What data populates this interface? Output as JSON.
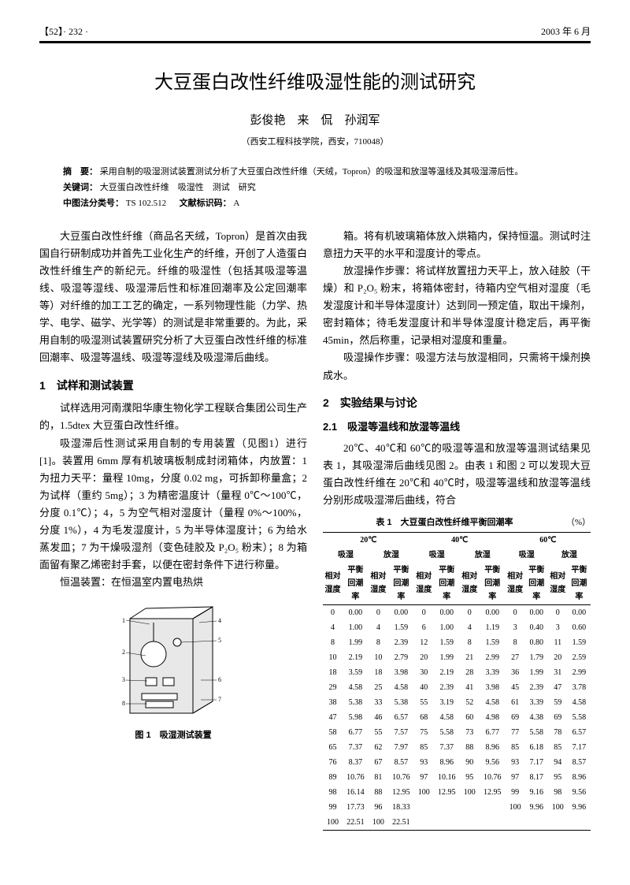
{
  "header": {
    "left": "【52】· 232 ·",
    "right": "2003 年 6 月"
  },
  "title": "大豆蛋白改性纤维吸湿性能的测试研究",
  "authors": "彭俊艳　来　侃　孙润军",
  "affiliation": "（西安工程科技学院，西安，710048）",
  "abstract": {
    "label": "摘　要：",
    "text": "采用自制的吸湿测试装置测试分析了大豆蛋白改性纤维（天绒，Topron）的吸湿和放湿等温线及其吸湿滞后性。",
    "kw_label": "关键词：",
    "kw": "大豆蛋白改性纤维　吸湿性　测试　研究",
    "clc_label": "中图法分类号：",
    "clc": "TS 102.512",
    "doc_label": "文献标识码：",
    "doc": "A"
  },
  "intro_p1": "大豆蛋白改性纤维（商品名天绒，Topron）是首次由我国自行研制成功并首先工业化生产的纤维，开创了人造蛋白改性纤维生产的新纪元。纤维的吸湿性（包括其吸湿等温线、吸湿等湿线、吸湿滞后性和标准回潮率及公定回潮率等）对纤维的加工工艺的确定，一系列物理性能（力学、热学、电学、磁学、光学等）的测试是非常重要的。为此，采用自制的吸湿测试装置研究分析了大豆蛋白改性纤维的标准回潮率、吸湿等温线、吸湿等湿线及吸湿滞后曲线。",
  "s1_h": "1　试样和测试装置",
  "s1_p1": "试样选用河南濮阳华康生物化学工程联合集团公司生产的，1.5dtex 大豆蛋白改性纤维。",
  "s1_p2": "吸湿滞后性测试采用自制的专用装置（见图1）进行[1]。装置用 6mm 厚有机玻璃板制成封闭箱体，内放置：1 为扭力天平：量程 10mg，分度 0.02 mg，可拆卸称量盒；2 为试样（重约 5mg）；3 为精密温度计（量程 0℃～100℃，分度 0.1℃）；4，5 为空气相对湿度计（量程 0%～100%，分度 1%），4 为毛发湿度计，5 为半导体湿度计；6 为给水蒸发皿；7 为干燥吸湿剂（变色硅胶及 P₂O₅ 粉末）；8 为箱面留有聚乙烯密封手套，以便在密封条件下进行称量。",
  "s1_p3": "恒温装置：在恒温室内置电热烘",
  "fig1_caption": "图 1　吸湿测试装置",
  "s1_p4": "箱。将有机玻璃箱体放入烘箱内，保持恒温。测试时注意扭力天平的水平和湿度计的零点。",
  "s1_p5": "放湿操作步骤：将试样放置扭力天平上，放入硅胶（干燥）和 P₂O₅ 粉末，将箱体密封，待箱内空气相对湿度（毛发湿度计和半导体湿度计）达到同一预定值，取出干燥剂，密封箱体；待毛发湿度计和半导体湿度计稳定后，再平衡 45min，然后称重，记录相对湿度和重量。",
  "s1_p6": "吸湿操作步骤：吸湿方法与放湿相同，只需将干燥剂换成水。",
  "s2_h": "2　实验结果与讨论",
  "s21_h": "2.1　吸湿等温线和放湿等温线",
  "s21_p1": "20℃、40℃和 60℃的吸湿等温和放湿等温测试结果见表 1，其吸湿滞后曲线见图 2。由表 1 和图 2 可以发现大豆蛋白改性纤维在 20℃和 40℃时，吸湿等温线和放湿等温线分别形成吸湿滞后曲线，符合",
  "table1": {
    "caption": "表 1　大豆蛋白改性纤维平衡回潮率",
    "unit": "（%）",
    "temps": [
      "20℃",
      "40℃",
      "60℃"
    ],
    "subhead": [
      "吸湿",
      "放湿"
    ],
    "col_pair": [
      "相对湿度",
      "平衡回潮率"
    ],
    "rows": [
      [
        "0",
        "0.00",
        "0",
        "0.00",
        "0",
        "0.00",
        "0",
        "0.00",
        "0",
        "0.00",
        "0",
        "0.00"
      ],
      [
        "4",
        "1.00",
        "4",
        "1.59",
        "6",
        "1.00",
        "4",
        "1.19",
        "3",
        "0.40",
        "3",
        "0.60"
      ],
      [
        "8",
        "1.99",
        "8",
        "2.39",
        "12",
        "1.59",
        "8",
        "1.59",
        "8",
        "0.80",
        "11",
        "1.59"
      ],
      [
        "10",
        "2.19",
        "10",
        "2.79",
        "20",
        "1.99",
        "21",
        "2.99",
        "27",
        "1.79",
        "20",
        "2.59"
      ],
      [
        "18",
        "3.59",
        "18",
        "3.98",
        "30",
        "2.19",
        "28",
        "3.39",
        "36",
        "1.99",
        "31",
        "2.99"
      ],
      [
        "29",
        "4.58",
        "25",
        "4.58",
        "40",
        "2.39",
        "41",
        "3.98",
        "45",
        "2.39",
        "47",
        "3.78"
      ],
      [
        "38",
        "5.38",
        "33",
        "5.38",
        "55",
        "3.19",
        "52",
        "4.58",
        "61",
        "3.39",
        "59",
        "4.58"
      ],
      [
        "47",
        "5.98",
        "46",
        "6.57",
        "68",
        "4.58",
        "60",
        "4.98",
        "69",
        "4.38",
        "69",
        "5.58"
      ],
      [
        "58",
        "6.77",
        "55",
        "7.57",
        "75",
        "5.58",
        "73",
        "6.77",
        "77",
        "5.58",
        "78",
        "6.57"
      ],
      [
        "65",
        "7.37",
        "62",
        "7.97",
        "85",
        "7.37",
        "88",
        "8.96",
        "85",
        "6.18",
        "85",
        "7.17"
      ],
      [
        "76",
        "8.37",
        "67",
        "8.57",
        "93",
        "8.96",
        "90",
        "9.56",
        "93",
        "7.17",
        "94",
        "8.57"
      ],
      [
        "89",
        "10.76",
        "81",
        "10.76",
        "97",
        "10.16",
        "95",
        "10.76",
        "97",
        "8.17",
        "95",
        "8.96"
      ],
      [
        "98",
        "16.14",
        "88",
        "12.95",
        "100",
        "12.95",
        "100",
        "12.95",
        "99",
        "9.16",
        "98",
        "9.56"
      ],
      [
        "99",
        "17.73",
        "96",
        "18.33",
        "",
        "",
        "",
        "",
        "100",
        "9.96",
        "100",
        "9.96"
      ],
      [
        "100",
        "22.51",
        "100",
        "22.51",
        "",
        "",
        "",
        "",
        "",
        "",
        "",
        ""
      ]
    ]
  }
}
